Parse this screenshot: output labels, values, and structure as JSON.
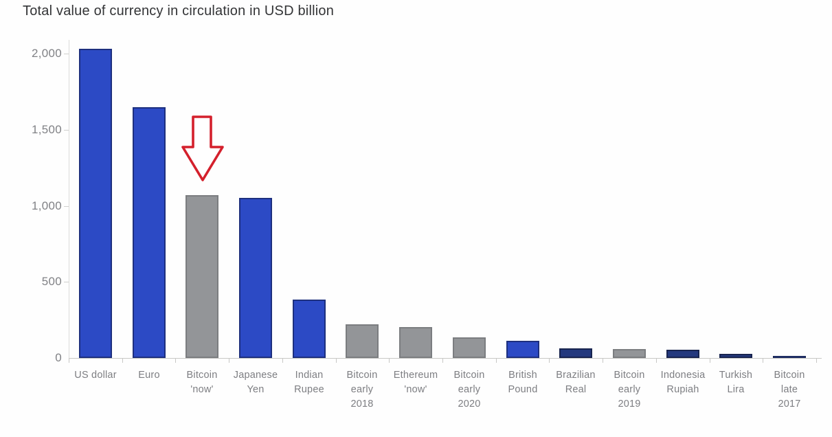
{
  "title": "Total value of currency in circulation in USD billion",
  "chart_data": {
    "type": "bar",
    "title": "Total value of currency in circulation in USD billion",
    "xlabel": "",
    "ylabel": "USD billion",
    "ylim": [
      0,
      2000
    ],
    "grid": false,
    "legend": "none",
    "yticks": [
      {
        "label": "2,000",
        "value": 2000
      },
      {
        "label": "1,500",
        "value": 1500
      },
      {
        "label": "1,000",
        "value": 1000
      },
      {
        "label": "500",
        "value": 500
      },
      {
        "label": "0",
        "value": 0
      }
    ],
    "categories": [
      "US dollar",
      "Euro",
      "Bitcoin 'now'",
      "Japanese Yen",
      "Indian Rupee",
      "Bitcoin early 2018",
      "Ethereum 'now'",
      "Bitcoin early 2020",
      "British Pound",
      "Brazilian Real",
      "Bitcoin early 2019",
      "Indonesia Rupiah",
      "Turkish Lira",
      "Bitcoin late 2017"
    ],
    "bars": [
      {
        "label_lines": [
          "US dollar"
        ],
        "value": 2030,
        "color_group": "blue"
      },
      {
        "label_lines": [
          "Euro"
        ],
        "value": 1650,
        "color_group": "blue"
      },
      {
        "label_lines": [
          "Bitcoin",
          "'now'"
        ],
        "value": 1070,
        "color_group": "gray"
      },
      {
        "label_lines": [
          "Japanese",
          "Yen"
        ],
        "value": 1050,
        "color_group": "blue"
      },
      {
        "label_lines": [
          "Indian",
          "Rupee"
        ],
        "value": 385,
        "color_group": "blue"
      },
      {
        "label_lines": [
          "Bitcoin",
          "early",
          "2018"
        ],
        "value": 220,
        "color_group": "gray"
      },
      {
        "label_lines": [
          "Ethereum",
          "'now'"
        ],
        "value": 205,
        "color_group": "gray"
      },
      {
        "label_lines": [
          "Bitcoin",
          "early",
          "2020"
        ],
        "value": 135,
        "color_group": "gray"
      },
      {
        "label_lines": [
          "British",
          "Pound"
        ],
        "value": 115,
        "color_group": "blue"
      },
      {
        "label_lines": [
          "Brazilian",
          "Real"
        ],
        "value": 65,
        "color_group": "navy"
      },
      {
        "label_lines": [
          "Bitcoin",
          "early",
          "2019"
        ],
        "value": 60,
        "color_group": "gray"
      },
      {
        "label_lines": [
          "Indonesia",
          "Rupiah"
        ],
        "value": 55,
        "color_group": "navy"
      },
      {
        "label_lines": [
          "Turkish",
          "Lira"
        ],
        "value": 25,
        "color_group": "navy"
      },
      {
        "label_lines": [
          "Bitcoin",
          "late",
          "2017"
        ],
        "value": 12,
        "color_group": "navy"
      }
    ],
    "annotation": {
      "shape": "down-arrow",
      "target_category": "Bitcoin 'now'",
      "target_index": 2,
      "color": "#d4202c"
    }
  },
  "colors": {
    "blue": {
      "fill": "#2c4ac5",
      "border": "#1d2f7e"
    },
    "gray": {
      "fill": "#939598",
      "border": "#7b7d80"
    },
    "navy": {
      "fill": "#24397e",
      "border": "#18244f"
    },
    "axis": "#c7c7c5",
    "label_gray": "#7d7e82",
    "title_color": "#333436",
    "annotation_red": "#d4202c"
  }
}
